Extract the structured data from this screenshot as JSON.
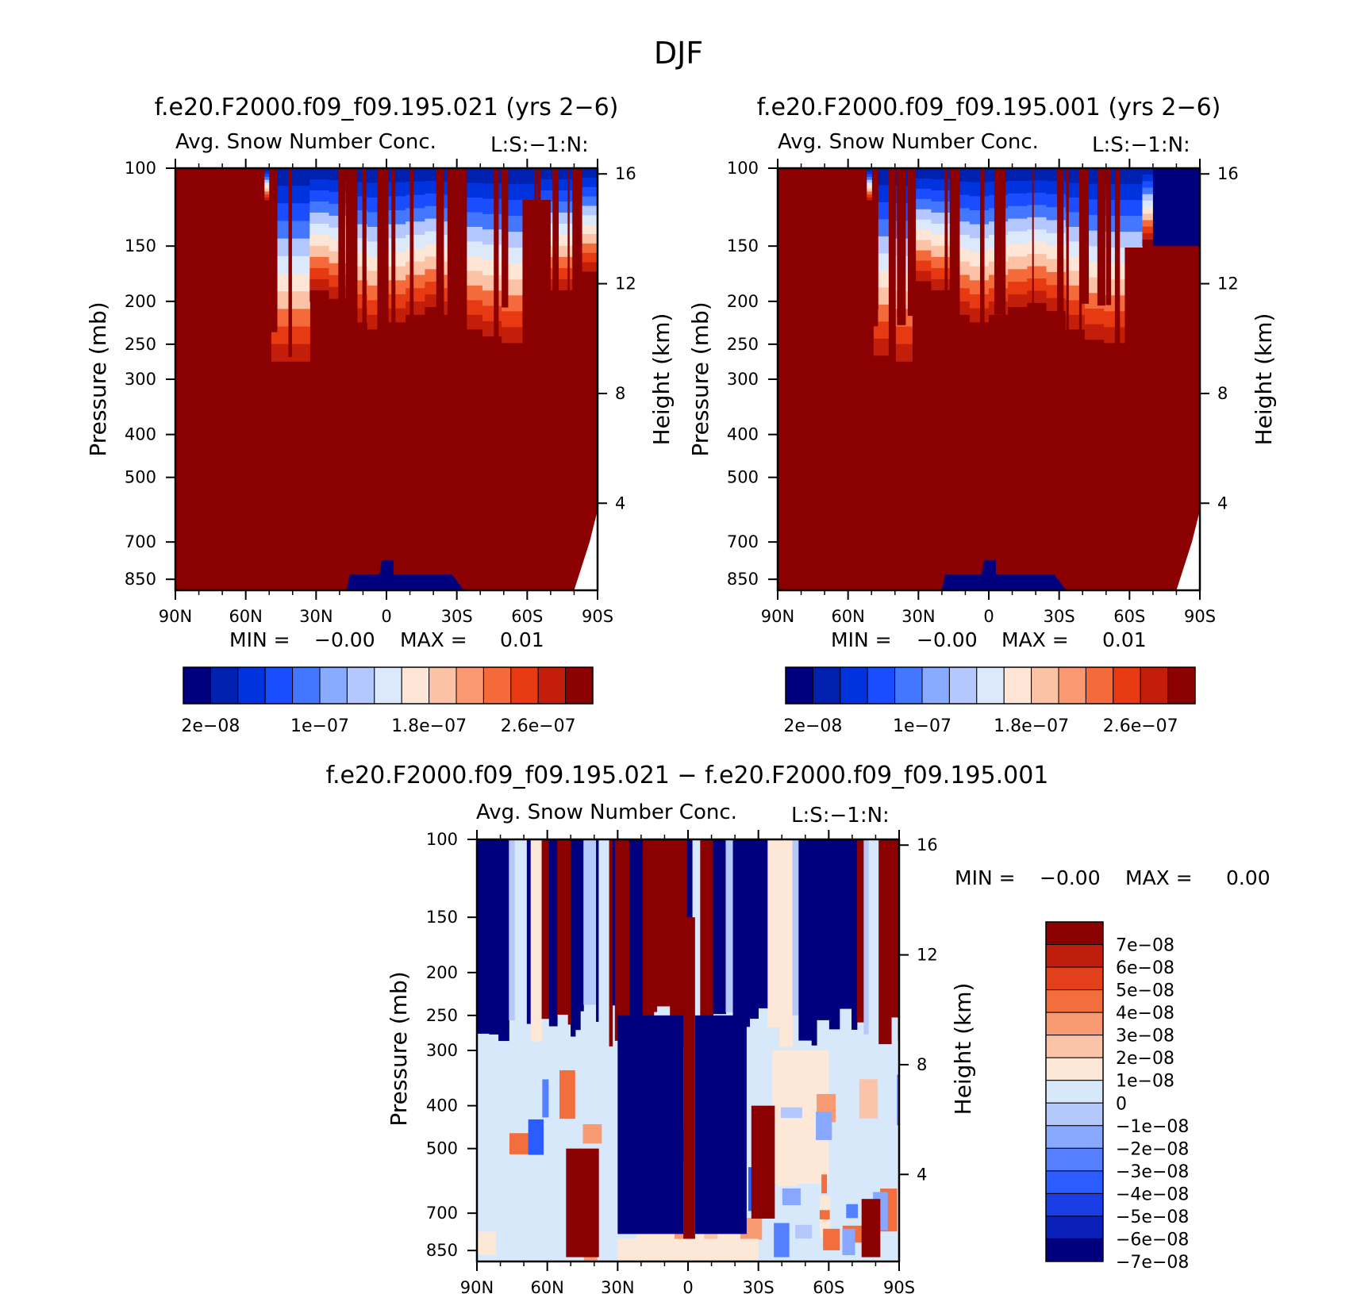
{
  "figure": {
    "title": "DJF"
  },
  "colors": {
    "seq_palette": [
      "#00007f",
      "#0020b0",
      "#0033dd",
      "#1a4dff",
      "#4477ff",
      "#88aaff",
      "#b4c8ff",
      "#dbe9fb",
      "#fde6d6",
      "#fbc2a6",
      "#f99872",
      "#f56a3a",
      "#e83a12",
      "#c21e0a",
      "#8b0000"
    ],
    "diff_palette": [
      "#00007f",
      "#0a20b8",
      "#1a3ee6",
      "#2b5cff",
      "#5480ff",
      "#88a8ff",
      "#b4c8fb",
      "#d8e8fb",
      "#fde8d8",
      "#fbc4a8",
      "#f89a72",
      "#f26e3c",
      "#e2401a",
      "#c01e0c",
      "#8b0000"
    ]
  },
  "chart_data": [
    {
      "type": "heatmap",
      "panel": "case",
      "title": "f.e20.F2000.f09_f09.195.021 (yrs 2−6)",
      "subtitle": "Avg. Snow Number Conc.",
      "units": "L:S:−1:N:",
      "xlabel": "",
      "ylabel": "Pressure (mb)",
      "ylabel_right": "Height (km)",
      "x_ticks": [
        "90N",
        "60N",
        "30N",
        "0",
        "30S",
        "60S",
        "90S"
      ],
      "x_range": [
        90,
        -90
      ],
      "y_ticks": [
        100,
        150,
        200,
        250,
        300,
        400,
        500,
        700,
        850
      ],
      "y_range": [
        100,
        900
      ],
      "y_scale": "log",
      "right_ticks": [
        16,
        12,
        8,
        4
      ],
      "stats": {
        "min_label": "MIN =",
        "min": "−0.00",
        "max_label": "MAX =",
        "max": "0.01"
      },
      "colorbar": {
        "orientation": "horizontal",
        "labels": [
          "2e−08",
          "1e−07",
          "1.8e−07",
          "2.6e−07"
        ],
        "levels": [
          2e-08,
          4e-08,
          6e-08,
          8e-08,
          1e-07,
          1.2e-07,
          1.4e-07,
          1.6e-07,
          1.8e-07,
          2e-07,
          2.2e-07,
          2.4e-07,
          2.6e-07,
          2.8e-07
        ]
      },
      "field": {
        "tropopause_p": [
          120,
          120,
          120,
          120,
          120,
          300,
          300,
          200,
          210,
          240,
          250,
          240,
          230,
          220,
          230,
          250,
          260,
          270,
          270,
          200,
          200,
          180
        ],
        "surface_blue": {
          "lat_from": 17,
          "lat_to": -33,
          "p_top": 770
        },
        "missing_below": {
          "lat_from": -80,
          "p_from": 700
        }
      }
    },
    {
      "type": "heatmap",
      "panel": "control",
      "title": "f.e20.F2000.f09_f09.195.001 (yrs 2−6)",
      "subtitle": "Avg. Snow Number Conc.",
      "units": "L:S:−1:N:",
      "xlabel": "",
      "ylabel": "Pressure (mb)",
      "ylabel_right": "Height (km)",
      "x_ticks": [
        "90N",
        "60N",
        "30N",
        "0",
        "30S",
        "60S",
        "90S"
      ],
      "x_range": [
        90,
        -90
      ],
      "y_ticks": [
        100,
        150,
        200,
        250,
        300,
        400,
        500,
        700,
        850
      ],
      "y_range": [
        100,
        900
      ],
      "y_scale": "log",
      "right_ticks": [
        16,
        12,
        8,
        4
      ],
      "stats": {
        "min_label": "MIN =",
        "min": "−0.00",
        "max_label": "MAX =",
        "max": "0.01"
      },
      "colorbar": {
        "orientation": "horizontal",
        "labels": [
          "2e−08",
          "1e−07",
          "1.8e−07",
          "2.6e−07"
        ],
        "levels": [
          2e-08,
          4e-08,
          6e-08,
          8e-08,
          1e-07,
          1.2e-07,
          1.4e-07,
          1.6e-07,
          1.8e-07,
          2e-07,
          2.2e-07,
          2.4e-07,
          2.6e-07,
          2.8e-07
        ]
      },
      "field": {
        "tropopause_p": [
          120,
          120,
          120,
          120,
          120,
          290,
          300,
          190,
          200,
          230,
          240,
          230,
          220,
          215,
          225,
          250,
          265,
          270,
          270,
          150,
          150,
          150
        ],
        "surface_blue": {
          "lat_from": 20,
          "lat_to": -33,
          "p_top": 770
        },
        "missing_below": {
          "lat_from": -80,
          "p_from": 700
        }
      }
    },
    {
      "type": "heatmap",
      "panel": "difference",
      "title": "f.e20.F2000.f09_f09.195.021 − f.e20.F2000.f09_f09.195.001",
      "subtitle": "Avg. Snow Number Conc.",
      "units": "L:S:−1:N:",
      "xlabel": "",
      "ylabel": "Pressure (mb)",
      "ylabel_right": "Height (km)",
      "x_ticks": [
        "90N",
        "60N",
        "30N",
        "0",
        "30S",
        "60S",
        "90S"
      ],
      "x_range": [
        90,
        -90
      ],
      "y_ticks": [
        100,
        150,
        200,
        250,
        300,
        400,
        500,
        700,
        850
      ],
      "y_range": [
        100,
        900
      ],
      "y_scale": "log",
      "right_ticks": [
        16,
        12,
        8,
        4
      ],
      "stats": {
        "min_label": "MIN =",
        "min": "−0.00",
        "max_label": "MAX =",
        "max": "0.00"
      },
      "colorbar": {
        "orientation": "vertical",
        "labels": [
          "7e−08",
          "6e−08",
          "5e−08",
          "4e−08",
          "3e−08",
          "2e−08",
          "1e−08",
          "0",
          "−1e−08",
          "−2e−08",
          "−3e−08",
          "−4e−08",
          "−5e−08",
          "−6e−08",
          "−7e−08"
        ],
        "levels": [
          7e-08,
          6e-08,
          5e-08,
          4e-08,
          3e-08,
          2e-08,
          1e-08,
          0,
          -1e-08,
          -2e-08,
          -3e-08,
          -4e-08,
          -5e-08,
          -6e-08,
          -7e-08
        ]
      },
      "field": {
        "stripe_p_bottom": 300,
        "block_regions": [
          {
            "lat_from": 30,
            "lat_to": 2,
            "p_from": 250,
            "p_to": 780,
            "sign": -1
          },
          {
            "lat_from": -3,
            "lat_to": -25,
            "p_from": 250,
            "p_to": 780,
            "sign": -1
          },
          {
            "lat_from": 52,
            "lat_to": 38,
            "p_from": 500,
            "p_to": 880,
            "sign": 1
          },
          {
            "lat_from": 2,
            "lat_to": -3,
            "p_from": 150,
            "p_to": 880,
            "sign": 1
          },
          {
            "lat_from": -27,
            "lat_to": -37,
            "p_from": 400,
            "p_to": 720,
            "sign": 1
          },
          {
            "lat_from": -74,
            "lat_to": -82,
            "p_from": 650,
            "p_to": 880,
            "sign": 1
          }
        ]
      }
    }
  ]
}
